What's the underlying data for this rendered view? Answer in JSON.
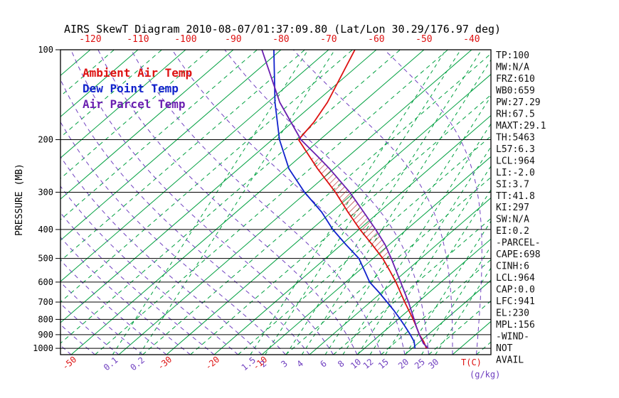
{
  "title": "AIRS SkewT Diagram 2010-08-07/01:37:09.80 (Lat/Lon 30.29/176.97 deg)",
  "legend": [
    {
      "label": "Ambient Air Temp",
      "color": "#dd1111"
    },
    {
      "label": "Dew Point Temp",
      "color": "#1122cc"
    },
    {
      "label": "Air Parcel Temp",
      "color": "#6a1fb0"
    }
  ],
  "axes": {
    "pressure_label": "PRESSURE (MB)",
    "temp_unit_label": "T(C)",
    "mr_unit_label": "(g/kg)"
  },
  "stats_panel": [
    "TP:100",
    "MW:N/A",
    "FRZ:610",
    "WB0:659",
    "PW:27.29",
    "RH:67.5",
    "MAXT:29.1",
    "TH:5463",
    "L57:6.3",
    "LCL:964",
    "LI:-2.0",
    "SI:3.7",
    "TT:41.8",
    "KI:297",
    "SW:N/A",
    "EI:0.2",
    "-PARCEL-",
    "CAPE:698",
    "CINH:6",
    "LCL:964",
    "CAP:0.0",
    "LFC:941",
    "EL:230",
    "MPL:156",
    "-WIND-",
    "NOT",
    "AVAIL"
  ],
  "colors": {
    "temp_labels": "#dd1111",
    "mr_labels": "#7040c0",
    "isotherm": "#00a040",
    "mixing_ratio_line": "#00a040",
    "moist_adiabat": "#7040c0",
    "hatch": "#b22222",
    "grid": "#000000"
  },
  "chart_data": {
    "type": "skewt",
    "title": "AIRS SkewT Diagram 2010-08-07/01:37:09.80 (Lat/Lon 30.29/176.97 deg)",
    "ylabel": "PRESSURE (MB)",
    "xlabel": "T(C)",
    "x2label": "(g/kg)",
    "pressure_axis": {
      "top_mb": 100,
      "bottom_mb": 1050,
      "ticks_mb": [
        100,
        200,
        300,
        400,
        500,
        600,
        700,
        800,
        900,
        1000
      ]
    },
    "temp_axis": {
      "top_labels_c": [
        -120,
        -110,
        -100,
        -90,
        -80,
        -70,
        -60,
        -50,
        -40
      ],
      "bottom_labels_c": [
        -50,
        -30,
        -20,
        -10
      ]
    },
    "isotherms_c": {
      "min": -120,
      "max": 40,
      "step": 10,
      "dashed_offset": 5
    },
    "mr_top_offset_c": -33,
    "mixing_ratio_g_kg": [
      {
        "w": "0.1",
        "t_bottom_c": -41.3
      },
      {
        "w": "0.2",
        "t_bottom_c": -35.7
      },
      {
        "w": "1.5",
        "t_bottom_c": -12.4
      },
      {
        "w": "2",
        "t_bottom_c": -9.3
      },
      {
        "w": "3",
        "t_bottom_c": -4.9
      },
      {
        "w": "4",
        "t_bottom_c": -1.6
      },
      {
        "w": "6",
        "t_bottom_c": 3.3
      },
      {
        "w": "8",
        "t_bottom_c": 7.0
      },
      {
        "w": "10",
        "t_bottom_c": 10.1
      },
      {
        "w": "12",
        "t_bottom_c": 12.7
      },
      {
        "w": "15",
        "t_bottom_c": 15.9
      },
      {
        "w": "20",
        "t_bottom_c": 20.1
      },
      {
        "w": "25",
        "t_bottom_c": 23.5
      },
      {
        "w": "30",
        "t_bottom_c": 26.4
      }
    ],
    "moist_adiabats_c": {
      "min": -55,
      "max": 40,
      "step": 5
    },
    "series": [
      {
        "name": "Ambient Air Temp",
        "color": "#dd1111",
        "points": [
          [
            100,
            -64.5
          ],
          [
            150,
            -57.5
          ],
          [
            175,
            -55.5
          ],
          [
            200,
            -54.5
          ],
          [
            250,
            -43.5
          ],
          [
            300,
            -34.0
          ],
          [
            350,
            -26.5
          ],
          [
            400,
            -19.8
          ],
          [
            450,
            -13.5
          ],
          [
            500,
            -8.0
          ],
          [
            550,
            -3.5
          ],
          [
            600,
            0.5
          ],
          [
            650,
            4.0
          ],
          [
            700,
            7.2
          ],
          [
            750,
            10.3
          ],
          [
            800,
            13.2
          ],
          [
            850,
            15.8
          ],
          [
            900,
            18.2
          ],
          [
            950,
            20.8
          ],
          [
            1000,
            23.0
          ]
        ]
      },
      {
        "name": "Dew Point Temp",
        "color": "#1122cc",
        "points": [
          [
            100,
            -81.5
          ],
          [
            150,
            -68.5
          ],
          [
            200,
            -58.5
          ],
          [
            250,
            -49.5
          ],
          [
            300,
            -40.5
          ],
          [
            350,
            -32.0
          ],
          [
            400,
            -25.5
          ],
          [
            450,
            -19.0
          ],
          [
            500,
            -13.0
          ],
          [
            550,
            -8.8
          ],
          [
            600,
            -5.0
          ],
          [
            650,
            -0.5
          ],
          [
            700,
            3.5
          ],
          [
            750,
            7.2
          ],
          [
            800,
            10.5
          ],
          [
            850,
            13.5
          ],
          [
            900,
            16.3
          ],
          [
            950,
            18.8
          ],
          [
            1000,
            20.6
          ]
        ]
      },
      {
        "name": "Air Parcel Temp",
        "color": "#6a1fb0",
        "points": [
          [
            100,
            -84.0
          ],
          [
            150,
            -67.5
          ],
          [
            200,
            -54.0
          ],
          [
            230,
            -45.8
          ],
          [
            250,
            -41.0
          ],
          [
            300,
            -31.0
          ],
          [
            350,
            -23.2
          ],
          [
            400,
            -16.5
          ],
          [
            450,
            -10.8
          ],
          [
            500,
            -6.2
          ],
          [
            600,
            1.5
          ],
          [
            700,
            8.0
          ],
          [
            800,
            13.4
          ],
          [
            850,
            15.8
          ],
          [
            900,
            18.2
          ],
          [
            964,
            21.2
          ],
          [
            1000,
            23.4
          ]
        ]
      }
    ],
    "cape_hatch": {
      "p_min_mb": 230,
      "p_max_mb": 500
    }
  }
}
